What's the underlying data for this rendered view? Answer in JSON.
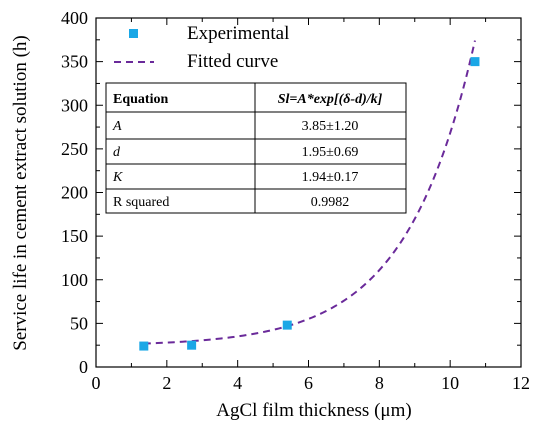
{
  "chart_data": {
    "type": "scatter",
    "xlabel": "AgCl film thickness (μm)",
    "ylabel": "Service life in cement extract solution (h)",
    "xlim": [
      0,
      12
    ],
    "ylim": [
      0,
      400
    ],
    "x_ticks": [
      "0",
      "2",
      "4",
      "6",
      "8",
      "10",
      "12"
    ],
    "y_ticks": [
      "0",
      "50",
      "100",
      "150",
      "200",
      "250",
      "300",
      "350",
      "400"
    ],
    "grid": false,
    "legend_position": "top-left",
    "series": [
      {
        "name": "Experimental",
        "kind": "scatter",
        "color": "#1aa7e6",
        "marker": "square",
        "x": [
          1.35,
          2.7,
          5.4,
          10.7
        ],
        "y": [
          24,
          25,
          48,
          350
        ]
      },
      {
        "name": "Fitted curve",
        "kind": "line",
        "color": "#6a2a9a",
        "dash": "dashed",
        "model": {
          "A": 3.85,
          "d": 1.95,
          "K": 1.94,
          "y0": 24
        }
      }
    ],
    "table": {
      "header": [
        "Equation",
        "Sl=A*exp[(δ-d)/k]"
      ],
      "rows": [
        [
          "A",
          "3.85±1.20"
        ],
        [
          "d",
          "1.95±0.69"
        ],
        [
          "K",
          "1.94±0.17"
        ],
        [
          "R squared",
          "0.9982"
        ]
      ]
    }
  }
}
